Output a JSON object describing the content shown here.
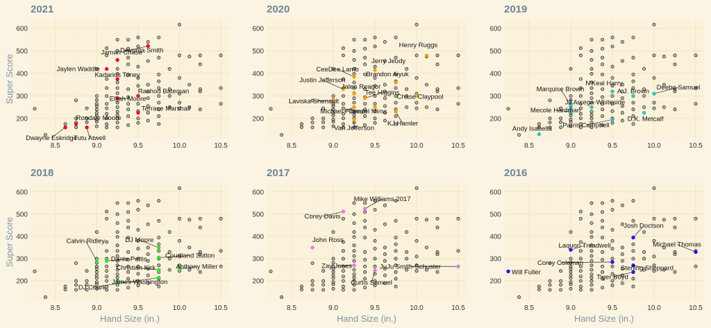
{
  "chart_data": {
    "type": "scatter",
    "xlabel": "Hand Size (in.)",
    "ylabel": "Super Score",
    "xlim": [
      8.2,
      10.6
    ],
    "ylim": [
      110,
      640
    ],
    "x_ticks": [
      "8.5",
      "9.0",
      "9.5",
      "10.0",
      "10.5"
    ],
    "y_ticks": [
      "200",
      "300",
      "400",
      "500",
      "600"
    ],
    "grid": true,
    "background_points": [
      [
        8.25,
        243
      ],
      [
        8.38,
        127
      ],
      [
        8.62,
        161
      ],
      [
        8.62,
        175
      ],
      [
        8.75,
        160
      ],
      [
        8.75,
        182
      ],
      [
        8.75,
        200
      ],
      [
        8.75,
        280
      ],
      [
        8.88,
        160
      ],
      [
        8.88,
        183
      ],
      [
        8.88,
        200
      ],
      [
        8.88,
        245
      ],
      [
        9.0,
        165
      ],
      [
        9.0,
        185
      ],
      [
        9.0,
        195
      ],
      [
        9.0,
        213
      ],
      [
        9.0,
        225
      ],
      [
        9.0,
        240
      ],
      [
        9.0,
        255
      ],
      [
        9.0,
        265
      ],
      [
        9.0,
        282
      ],
      [
        9.0,
        300
      ],
      [
        9.0,
        420
      ],
      [
        9.12,
        160
      ],
      [
        9.12,
        175
      ],
      [
        9.12,
        200
      ],
      [
        9.12,
        220
      ],
      [
        9.12,
        245
      ],
      [
        9.12,
        265
      ],
      [
        9.12,
        300
      ],
      [
        9.12,
        335
      ],
      [
        9.12,
        375
      ],
      [
        9.12,
        480
      ],
      [
        9.12,
        512
      ],
      [
        9.25,
        160
      ],
      [
        9.25,
        182
      ],
      [
        9.25,
        200
      ],
      [
        9.25,
        215
      ],
      [
        9.25,
        230
      ],
      [
        9.25,
        250
      ],
      [
        9.25,
        270
      ],
      [
        9.25,
        290
      ],
      [
        9.25,
        312
      ],
      [
        9.25,
        335
      ],
      [
        9.25,
        360
      ],
      [
        9.25,
        398
      ],
      [
        9.25,
        420
      ],
      [
        9.25,
        460
      ],
      [
        9.25,
        500
      ],
      [
        9.25,
        550
      ],
      [
        9.38,
        170
      ],
      [
        9.38,
        210
      ],
      [
        9.38,
        240
      ],
      [
        9.38,
        265
      ],
      [
        9.38,
        295
      ],
      [
        9.38,
        330
      ],
      [
        9.38,
        395
      ],
      [
        9.38,
        440
      ],
      [
        9.38,
        470
      ],
      [
        9.38,
        510
      ],
      [
        9.38,
        550
      ],
      [
        9.5,
        180
      ],
      [
        9.5,
        200
      ],
      [
        9.5,
        232
      ],
      [
        9.5,
        265
      ],
      [
        9.5,
        300
      ],
      [
        9.5,
        345
      ],
      [
        9.5,
        380
      ],
      [
        9.5,
        430
      ],
      [
        9.5,
        520
      ],
      [
        9.5,
        560
      ],
      [
        9.62,
        190
      ],
      [
        9.62,
        225
      ],
      [
        9.62,
        255
      ],
      [
        9.62,
        290
      ],
      [
        9.62,
        320
      ],
      [
        9.62,
        350
      ],
      [
        9.62,
        455
      ],
      [
        9.62,
        540
      ],
      [
        9.75,
        175
      ],
      [
        9.75,
        210
      ],
      [
        9.75,
        240
      ],
      [
        9.75,
        270
      ],
      [
        9.75,
        300
      ],
      [
        9.75,
        335
      ],
      [
        9.75,
        365
      ],
      [
        9.75,
        395
      ],
      [
        9.75,
        470
      ],
      [
        9.75,
        560
      ],
      [
        9.88,
        250
      ],
      [
        9.88,
        300
      ],
      [
        9.88,
        330
      ],
      [
        9.88,
        420
      ],
      [
        10.0,
        245
      ],
      [
        10.0,
        270
      ],
      [
        10.0,
        310
      ],
      [
        10.0,
        380
      ],
      [
        10.0,
        480
      ],
      [
        10.0,
        617
      ],
      [
        10.12,
        250
      ],
      [
        10.12,
        350
      ],
      [
        10.12,
        475
      ],
      [
        10.25,
        240
      ],
      [
        10.25,
        320
      ],
      [
        10.25,
        330
      ],
      [
        10.25,
        440
      ],
      [
        10.25,
        480
      ],
      [
        10.5,
        265
      ],
      [
        10.5,
        335
      ],
      [
        10.5,
        480
      ]
    ],
    "panels": [
      {
        "title": "2021",
        "color": "#e8101e",
        "points": [
          {
            "name": "Ja'Marr Chase",
            "x": 9.62,
            "y": 522,
            "dx": -6,
            "dy": -12,
            "anchor": "end",
            "show": false
          },
          {
            "name": "Jamarr Chase",
            "x": 9.62,
            "y": 522,
            "dx": -38,
            "dy": 12,
            "anchor": "middle"
          },
          {
            "name": "Devonta Smith",
            "x": 9.25,
            "y": 460,
            "dx": 4,
            "dy": -11,
            "anchor": "start"
          },
          {
            "name": "Jaylen Waddle",
            "x": 9.12,
            "y": 420,
            "dx": -10,
            "dy": 3,
            "anchor": "end"
          },
          {
            "name": "Kadarius Toney",
            "x": 9.25,
            "y": 375,
            "dx": 0,
            "dy": -3,
            "anchor": "middle"
          },
          {
            "name": "Elijah Moore",
            "x": 9.25,
            "y": 290,
            "dx": 15,
            "dy": 4,
            "anchor": "middle"
          },
          {
            "name": "Rashod Bateman",
            "x": 9.5,
            "y": 300,
            "dx": 0,
            "dy": -4,
            "anchor": "start"
          },
          {
            "name": "Terrace Marshall",
            "x": 9.5,
            "y": 225,
            "dx": 5,
            "dy": -3,
            "anchor": "start"
          },
          {
            "name": "Rondale Moore",
            "x": 8.75,
            "y": 175,
            "dx": 0,
            "dy": -6,
            "anchor": "start"
          },
          {
            "name": "Dwayne Eskridge",
            "x": 8.62,
            "y": 160,
            "dx": -20,
            "dy": 18,
            "anchor": "middle"
          },
          {
            "name": "Tutu Atwell",
            "x": 8.88,
            "y": 160,
            "dx": 4,
            "dy": 18,
            "anchor": "middle"
          }
        ]
      },
      {
        "title": "2020",
        "color": "#f2a20c",
        "points": [
          {
            "name": "Henry Ruggs",
            "x": 10.12,
            "y": 480,
            "dx": -12,
            "dy": -12,
            "anchor": "middle"
          },
          {
            "name": "Jerry Jeudy",
            "x": 9.5,
            "y": 415,
            "dx": -5,
            "dy": -10,
            "anchor": "start"
          },
          {
            "name": "CeeDee Lamb",
            "x": 9.25,
            "y": 385,
            "dx": -24,
            "dy": -8,
            "anchor": "middle"
          },
          {
            "name": "Brandon Aiyuk",
            "x": 9.75,
            "y": 360,
            "dx": -12,
            "dy": -9,
            "anchor": "middle"
          },
          {
            "name": "Justin Jefferson",
            "x": 9.12,
            "y": 330,
            "dx": -30,
            "dy": -10,
            "anchor": "middle"
          },
          {
            "name": "Jalen Reagor",
            "x": 9.25,
            "y": 310,
            "dx": 10,
            "dy": -7,
            "anchor": "middle"
          },
          {
            "name": "Tee Higgins",
            "x": 9.38,
            "y": 290,
            "dx": 25,
            "dy": -5,
            "anchor": "middle"
          },
          {
            "name": "Chase Claypool",
            "x": 10.0,
            "y": 300,
            "dx": 5,
            "dy": 4,
            "anchor": "middle"
          },
          {
            "name": "Laviska Shenault",
            "x": 9.0,
            "y": 280,
            "dx": -28,
            "dy": 4,
            "anchor": "middle"
          },
          {
            "name": "Michael Pittman",
            "x": 9.25,
            "y": 250,
            "dx": -15,
            "dy": 9,
            "anchor": "middle"
          },
          {
            "name": "Denzel Mims",
            "x": 9.5,
            "y": 250,
            "dx": -10,
            "dy": 9,
            "anchor": "middle"
          },
          {
            "name": "KJ Hamler",
            "x": 9.75,
            "y": 230,
            "dx": 10,
            "dy": 20,
            "anchor": "middle"
          },
          {
            "name": "Van Jefferson",
            "x": 9.25,
            "y": 195,
            "dx": 0,
            "dy": 15,
            "anchor": "middle"
          }
        ]
      },
      {
        "title": "2019",
        "color": "#27c7c0",
        "points": [
          {
            "name": "N'Keal Harry",
            "x": 9.5,
            "y": 320,
            "dx": -12,
            "dy": -9,
            "anchor": "middle"
          },
          {
            "name": "A.J. Brown",
            "x": 9.75,
            "y": 300,
            "dx": 0,
            "dy": -4,
            "anchor": "middle"
          },
          {
            "name": "Deebo Samuel",
            "x": 10.0,
            "y": 310,
            "dx": 35,
            "dy": -6,
            "anchor": "middle"
          },
          {
            "name": "Marquise Brown",
            "x": 9.0,
            "y": 260,
            "dx": -15,
            "dy": -20,
            "anchor": "middle"
          },
          {
            "name": "JJ Arcega-Whiteside",
            "x": 9.25,
            "y": 250,
            "dx": 5,
            "dy": -4,
            "anchor": "middle"
          },
          {
            "name": "Mecole Hardman",
            "x": 9.0,
            "y": 230,
            "dx": -22,
            "dy": 1,
            "anchor": "middle"
          },
          {
            "name": "D.K. Metcalf",
            "x": 9.88,
            "y": 225,
            "dx": 2,
            "dy": 12,
            "anchor": "middle"
          },
          {
            "name": "Parris Campbell",
            "x": 9.5,
            "y": 195,
            "dx": -38,
            "dy": 11,
            "anchor": "middle"
          },
          {
            "name": "Andy Isabella",
            "x": 8.62,
            "y": 130,
            "dx": -10,
            "dy": -5,
            "anchor": "middle"
          }
        ]
      },
      {
        "title": "2018",
        "color": "#2ee52e",
        "points": [
          {
            "name": "DJ Moore",
            "x": 9.75,
            "y": 350,
            "dx": -28,
            "dy": -8,
            "anchor": "middle"
          },
          {
            "name": "Calvin Ridley",
            "x": 9.0,
            "y": 290,
            "dx": -16,
            "dy": -26,
            "anchor": "middle"
          },
          {
            "name": "Dante Pettis",
            "x": 9.12,
            "y": 290,
            "dx": 32,
            "dy": 0,
            "anchor": "middle"
          },
          {
            "name": "Courtland Sutton",
            "x": 9.75,
            "y": 305,
            "dx": 45,
            "dy": 0,
            "anchor": "middle"
          },
          {
            "name": "Anthony Miller",
            "x": 10.0,
            "y": 255,
            "dx": 25,
            "dy": 0,
            "anchor": "middle"
          },
          {
            "name": "Christian Kirk",
            "x": 9.75,
            "y": 250,
            "dx": -33,
            "dy": 0,
            "anchor": "middle"
          },
          {
            "name": "James Washington",
            "x": 9.25,
            "y": 195,
            "dx": 32,
            "dy": 3,
            "anchor": "middle"
          },
          {
            "name": "DJ Chark",
            "x": 9.75,
            "y": 215,
            "dx": -96,
            "dy": 17,
            "anchor": "middle"
          }
        ]
      },
      {
        "title": "2017",
        "color": "#e37de8",
        "points": [
          {
            "name": "Mike Williams 2017",
            "x": 9.38,
            "y": 525,
            "dx": 25,
            "dy": -11,
            "anchor": "middle"
          },
          {
            "name": "Corey Davis",
            "x": 9.12,
            "y": 512,
            "dx": -30,
            "dy": 10,
            "anchor": "middle"
          },
          {
            "name": "John Ross",
            "x": 8.75,
            "y": 350,
            "dx": 0,
            "dy": -8,
            "anchor": "start"
          },
          {
            "name": "Zay Jones",
            "x": 9.25,
            "y": 270,
            "dx": -25,
            "dy": 4,
            "anchor": "middle"
          },
          {
            "name": "JuJu Smith-Schuster",
            "x": 10.5,
            "y": 265,
            "dx": -69,
            "dy": 3,
            "anchor": "middle"
          },
          {
            "name": "Curtis Samuel",
            "x": 9.5,
            "y": 248,
            "dx": -5,
            "dy": 21,
            "anchor": "middle"
          }
        ]
      },
      {
        "title": "2016",
        "color": "#1a1aee",
        "points": [
          {
            "name": "Josh Doctson",
            "x": 9.75,
            "y": 395,
            "dx": 15,
            "dy": -14,
            "anchor": "middle"
          },
          {
            "name": "Michael Thomas",
            "x": 10.5,
            "y": 330,
            "dx": -27,
            "dy": -8,
            "anchor": "middle"
          },
          {
            "name": "Laquon Treadwell",
            "x": 9.0,
            "y": 340,
            "dx": 20,
            "dy": -3,
            "anchor": "middle"
          },
          {
            "name": "Sterling Sheppard",
            "x": 9.75,
            "y": 270,
            "dx": 20,
            "dy": 7,
            "anchor": "middle"
          },
          {
            "name": "Corey Coleman",
            "x": 9.5,
            "y": 285,
            "dx": -75,
            "dy": 4,
            "anchor": "middle"
          },
          {
            "name": "Will Fuller",
            "x": 8.25,
            "y": 243,
            "dx": 5,
            "dy": 4,
            "anchor": "start"
          },
          {
            "name": "Tiger Boyd",
            "x": 9.75,
            "y": 240,
            "dx": -30,
            "dy": 10,
            "anchor": "middle"
          }
        ]
      }
    ]
  }
}
